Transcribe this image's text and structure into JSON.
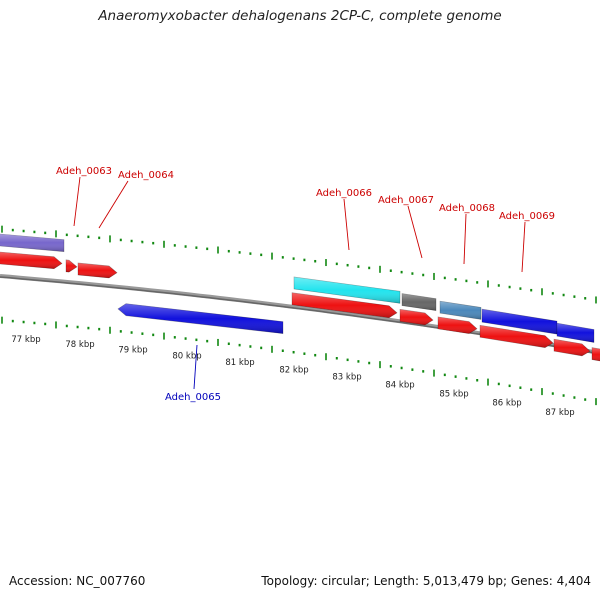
{
  "title": "Anaeromyxobacter dehalogenans 2CP-C, complete genome",
  "accession": "Accession: NC_007760",
  "stats": "Topology: circular; Length: 5,013,479 bp; Genes: 4,404",
  "colors": {
    "forward_cds": "#ee1111",
    "reverse_cds": "#1111dd",
    "forward_label": "#cc0000",
    "reverse_label": "#0000bb",
    "backbone": "#888888",
    "tick": "#118811"
  },
  "scale": {
    "unit": "kbp",
    "labels": [
      "77 kbp",
      "78 kbp",
      "79 kbp",
      "80 kbp",
      "81 kbp",
      "82 kbp",
      "83 kbp",
      "84 kbp",
      "85 kbp",
      "86 kbp",
      "87 kbp"
    ]
  },
  "gene_labels": {
    "forward": [
      "Adeh_0063",
      "Adeh_0064",
      "Adeh_0066",
      "Adeh_0067",
      "Adeh_0068",
      "Adeh_0069"
    ],
    "reverse": [
      "Adeh_0065"
    ]
  },
  "features": [
    {
      "strand": "forward",
      "track": "category",
      "color": "#7766cc"
    },
    {
      "strand": "forward",
      "track": "cds",
      "color": "#ee1111"
    },
    {
      "strand": "forward",
      "track": "cds",
      "color": "#ee1111"
    },
    {
      "strand": "forward",
      "track": "cds",
      "color": "#ee1111"
    },
    {
      "strand": "reverse",
      "track": "cds",
      "color": "#1111dd"
    },
    {
      "strand": "forward",
      "track": "category",
      "color": "#22e4ee"
    },
    {
      "strand": "forward",
      "track": "cds",
      "color": "#ee1111"
    },
    {
      "strand": "forward",
      "track": "category",
      "color": "#666666"
    },
    {
      "strand": "forward",
      "track": "cds",
      "color": "#ee1111"
    },
    {
      "strand": "forward",
      "track": "category",
      "color": "#4a88bb"
    },
    {
      "strand": "forward",
      "track": "cds",
      "color": "#ee1111"
    },
    {
      "strand": "forward",
      "track": "category",
      "color": "#1111dd"
    },
    {
      "strand": "forward",
      "track": "cds",
      "color": "#ee1111"
    },
    {
      "strand": "forward",
      "track": "category",
      "color": "#1111dd"
    },
    {
      "strand": "forward",
      "track": "cds",
      "color": "#ee1111"
    },
    {
      "strand": "forward",
      "track": "cds",
      "color": "#ee1111"
    }
  ]
}
